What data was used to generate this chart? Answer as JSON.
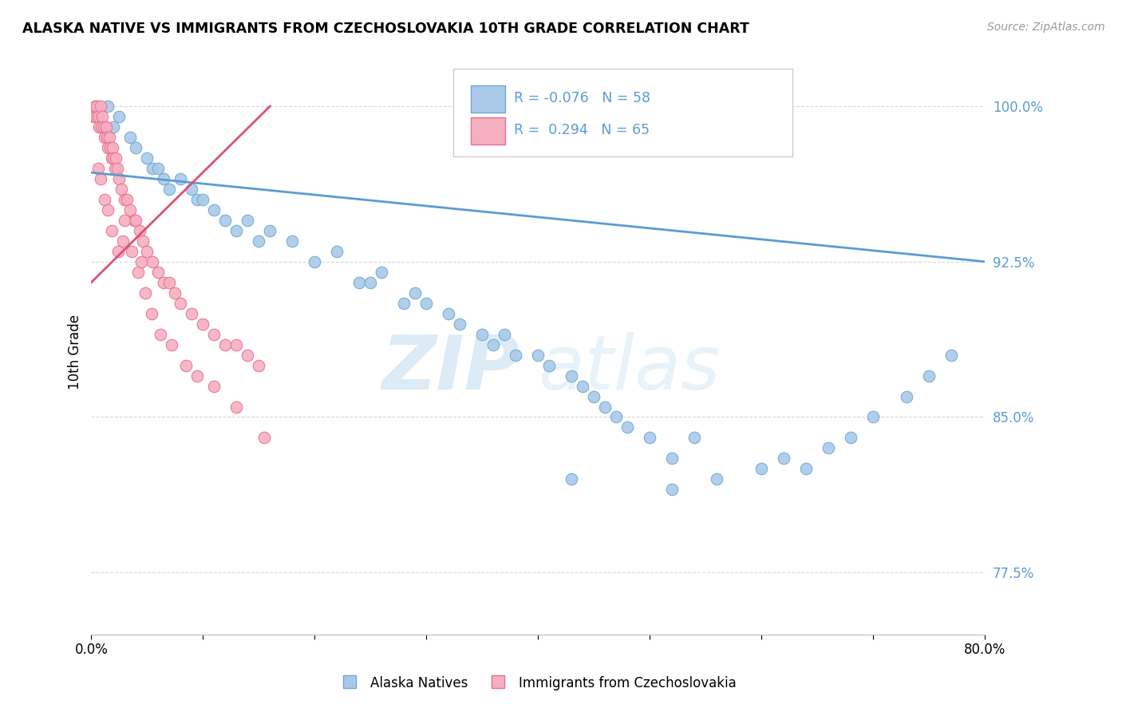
{
  "title": "ALASKA NATIVE VS IMMIGRANTS FROM CZECHOSLOVAKIA 10TH GRADE CORRELATION CHART",
  "source": "Source: ZipAtlas.com",
  "ylabel": "10th Grade",
  "xlim": [
    0.0,
    80.0
  ],
  "ylim": [
    74.5,
    101.8
  ],
  "ytick_vals": [
    77.5,
    85.0,
    92.5,
    100.0
  ],
  "ytick_labels": [
    "77.5%",
    "85.0%",
    "92.5%",
    "100.0%"
  ],
  "xtick_vals": [
    0,
    10,
    20,
    30,
    40,
    50,
    60,
    70,
    80
  ],
  "xtick_labels": [
    "0.0%",
    "",
    "",
    "",
    "",
    "",
    "",
    "",
    "80.0%"
  ],
  "blue_color": "#aac9e8",
  "blue_edge": "#6aaad4",
  "pink_color": "#f5afc0",
  "pink_edge": "#e87090",
  "trend_blue": "#5b9bd5",
  "trend_pink": "#e05070",
  "background_color": "#ffffff",
  "watermark_zip": "ZIP",
  "watermark_atlas": "atlas",
  "grid_color": "#d8d8d8",
  "blue_x": [
    1.5,
    2.0,
    2.5,
    3.5,
    4.0,
    5.0,
    5.5,
    6.0,
    6.5,
    7.0,
    8.0,
    9.0,
    9.5,
    10.0,
    11.0,
    12.0,
    13.0,
    14.0,
    15.0,
    16.0,
    18.0,
    20.0,
    22.0,
    24.0,
    25.0,
    26.0,
    28.0,
    29.0,
    30.0,
    32.0,
    33.0,
    35.0,
    36.0,
    37.0,
    38.0,
    40.0,
    41.0,
    43.0,
    44.0,
    45.0,
    46.0,
    47.0,
    48.0,
    50.0,
    52.0,
    54.0,
    56.0,
    60.0,
    62.0,
    64.0,
    66.0,
    68.0,
    70.0,
    73.0,
    75.0,
    77.0,
    43.0,
    52.0
  ],
  "blue_y": [
    100.0,
    99.0,
    99.5,
    98.5,
    98.0,
    97.5,
    97.0,
    97.0,
    96.5,
    96.0,
    96.5,
    96.0,
    95.5,
    95.5,
    95.0,
    94.5,
    94.0,
    94.5,
    93.5,
    94.0,
    93.5,
    92.5,
    93.0,
    91.5,
    91.5,
    92.0,
    90.5,
    91.0,
    90.5,
    90.0,
    89.5,
    89.0,
    88.5,
    89.0,
    88.0,
    88.0,
    87.5,
    87.0,
    86.5,
    86.0,
    85.5,
    85.0,
    84.5,
    84.0,
    83.0,
    84.0,
    82.0,
    82.5,
    83.0,
    82.5,
    83.5,
    84.0,
    85.0,
    86.0,
    87.0,
    88.0,
    82.0,
    81.5
  ],
  "pink_x": [
    0.2,
    0.3,
    0.4,
    0.5,
    0.6,
    0.7,
    0.8,
    0.9,
    1.0,
    1.1,
    1.2,
    1.3,
    1.4,
    1.5,
    1.6,
    1.7,
    1.8,
    1.9,
    2.0,
    2.1,
    2.2,
    2.3,
    2.5,
    2.7,
    3.0,
    3.2,
    3.5,
    3.8,
    4.0,
    4.3,
    4.6,
    5.0,
    5.5,
    6.0,
    6.5,
    7.0,
    7.5,
    8.0,
    9.0,
    10.0,
    11.0,
    12.0,
    13.0,
    14.0,
    15.0,
    0.8,
    1.2,
    1.8,
    2.4,
    3.0,
    3.6,
    4.2,
    4.8,
    5.4,
    6.2,
    7.2,
    8.5,
    9.5,
    11.0,
    13.0,
    15.5,
    4.5,
    0.6,
    1.5,
    2.8
  ],
  "pink_y": [
    99.5,
    100.0,
    99.5,
    100.0,
    99.5,
    99.0,
    100.0,
    99.0,
    99.5,
    99.0,
    98.5,
    99.0,
    98.5,
    98.0,
    98.5,
    98.0,
    97.5,
    98.0,
    97.5,
    97.0,
    97.5,
    97.0,
    96.5,
    96.0,
    95.5,
    95.5,
    95.0,
    94.5,
    94.5,
    94.0,
    93.5,
    93.0,
    92.5,
    92.0,
    91.5,
    91.5,
    91.0,
    90.5,
    90.0,
    89.5,
    89.0,
    88.5,
    88.5,
    88.0,
    87.5,
    96.5,
    95.5,
    94.0,
    93.0,
    94.5,
    93.0,
    92.0,
    91.0,
    90.0,
    89.0,
    88.5,
    87.5,
    87.0,
    86.5,
    85.5,
    84.0,
    92.5,
    97.0,
    95.0,
    93.5
  ],
  "trend_blue_x0": 0,
  "trend_blue_x1": 80,
  "trend_blue_y0": 96.8,
  "trend_blue_y1": 92.5,
  "trend_pink_x0": 0,
  "trend_pink_x1": 16,
  "trend_pink_y0": 91.5,
  "trend_pink_y1": 100.0
}
